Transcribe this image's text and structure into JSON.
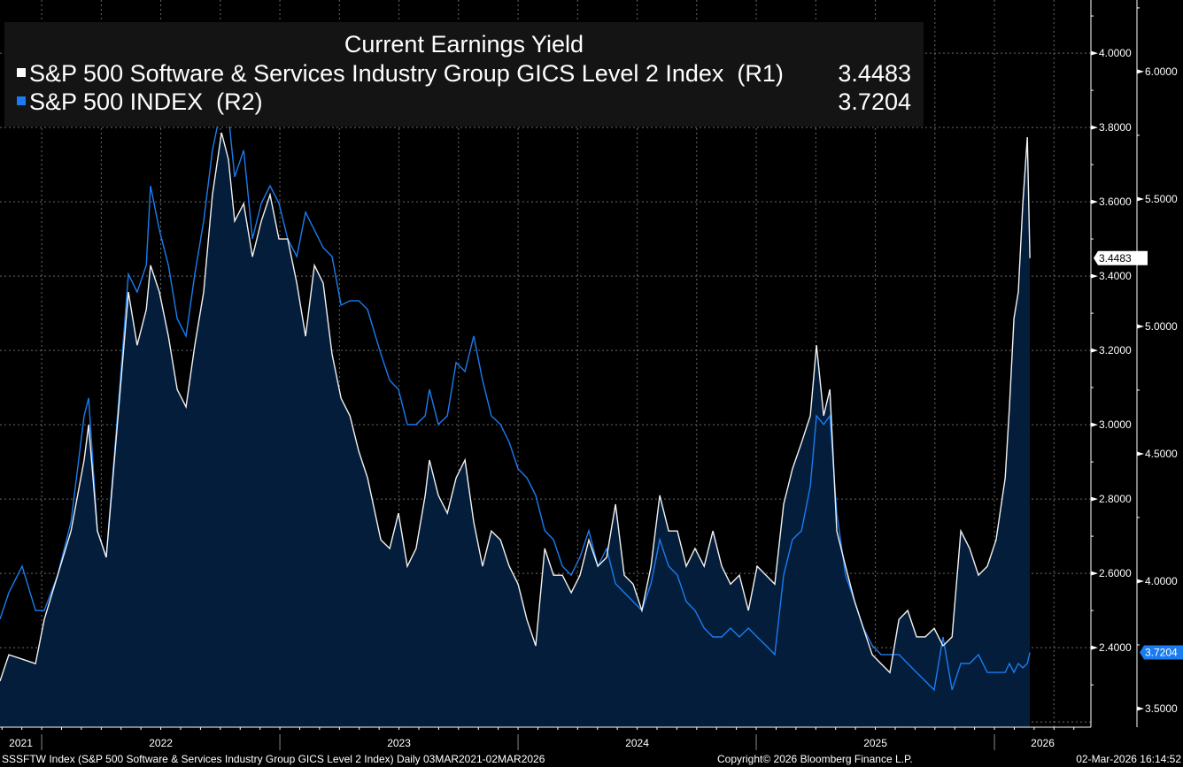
{
  "chart_data": {
    "type": "line",
    "title": "Current Earnings Yield",
    "legend_placement": "top-left",
    "grid": true,
    "x_unit": "decimal year",
    "xlim": [
      2021.825,
      2026.405
    ],
    "x_tick_labels": [
      "2021",
      "2022",
      "2023",
      "2024",
      "2025",
      "2026"
    ],
    "x": [
      2021.825,
      2021.862,
      2021.918,
      2021.974,
      2022.011,
      2022.067,
      2022.123,
      2022.178,
      2022.197,
      2022.234,
      2022.271,
      2022.327,
      2022.364,
      2022.401,
      2022.439,
      2022.457,
      2022.494,
      2022.532,
      2022.569,
      2022.606,
      2022.643,
      2022.68,
      2022.717,
      2022.755,
      2022.784,
      2022.81,
      2022.848,
      2022.885,
      2022.922,
      2022.959,
      2022.996,
      2023.033,
      2023.071,
      2023.108,
      2023.145,
      2023.182,
      2023.219,
      2023.257,
      2023.294,
      2023.331,
      2023.368,
      2023.424,
      2023.461,
      2023.498,
      2023.535,
      2023.572,
      2023.61,
      2023.628,
      2023.665,
      2023.703,
      2023.74,
      2023.777,
      2023.814,
      2023.851,
      2023.888,
      2023.926,
      2023.963,
      2024.0,
      2024.037,
      2024.074,
      2024.112,
      2024.149,
      2024.186,
      2024.223,
      2024.26,
      2024.297,
      2024.335,
      2024.372,
      2024.409,
      2024.446,
      2024.483,
      2024.52,
      2024.558,
      2024.595,
      2024.632,
      2024.669,
      2024.706,
      2024.743,
      2024.781,
      2024.818,
      2024.855,
      2024.892,
      2024.929,
      2024.967,
      2025.004,
      2025.041,
      2025.078,
      2025.115,
      2025.152,
      2025.19,
      2025.227,
      2025.253,
      2025.283,
      2025.309,
      2025.338,
      2025.375,
      2025.413,
      2025.45,
      2025.487,
      2025.524,
      2025.561,
      2025.599,
      2025.636,
      2025.673,
      2025.71,
      2025.747,
      2025.784,
      2025.822,
      2025.859,
      2025.896,
      2025.933,
      2025.97,
      2026.007,
      2026.045,
      2026.063,
      2026.082,
      2026.1,
      2026.119,
      2026.138,
      2026.149
    ],
    "series": [
      {
        "name": "S&P 500 Software & Services Industry Group GICS Level 2 Index",
        "axis": "(R1)",
        "last_value": "3.4483",
        "color": "#ffffff",
        "values": [
          2.31,
          2.381,
          2.369,
          2.357,
          2.476,
          2.595,
          2.714,
          2.905,
          3.0,
          2.714,
          2.643,
          3.071,
          3.357,
          3.214,
          3.31,
          3.429,
          3.357,
          3.238,
          3.095,
          3.048,
          3.214,
          3.357,
          3.619,
          3.786,
          3.714,
          3.548,
          3.595,
          3.452,
          3.548,
          3.619,
          3.5,
          3.5,
          3.381,
          3.238,
          3.429,
          3.381,
          3.19,
          3.071,
          3.024,
          2.929,
          2.857,
          2.69,
          2.667,
          2.762,
          2.619,
          2.667,
          2.81,
          2.905,
          2.81,
          2.762,
          2.857,
          2.905,
          2.738,
          2.619,
          2.714,
          2.69,
          2.619,
          2.571,
          2.476,
          2.405,
          2.667,
          2.595,
          2.595,
          2.548,
          2.595,
          2.69,
          2.619,
          2.643,
          2.786,
          2.595,
          2.571,
          2.5,
          2.619,
          2.81,
          2.714,
          2.714,
          2.619,
          2.667,
          2.619,
          2.714,
          2.619,
          2.571,
          2.595,
          2.5,
          2.619,
          2.595,
          2.571,
          2.786,
          2.881,
          2.952,
          3.024,
          3.214,
          3.024,
          3.095,
          2.714,
          2.619,
          2.524,
          2.452,
          2.381,
          2.357,
          2.333,
          2.476,
          2.5,
          2.429,
          2.429,
          2.452,
          2.405,
          2.429,
          2.714,
          2.667,
          2.595,
          2.619,
          2.69,
          2.857,
          3.048,
          3.286,
          3.357,
          3.595,
          3.774,
          3.4483
        ]
      },
      {
        "name": "S&P 500 INDEX",
        "axis": "(R2)",
        "last_value": "3.7204",
        "color": "#1a7cf0",
        "values": [
          3.851,
          3.955,
          4.059,
          3.885,
          3.885,
          4.024,
          4.233,
          4.649,
          4.719,
          4.198,
          4.094,
          4.753,
          5.205,
          5.135,
          5.24,
          5.552,
          5.378,
          5.24,
          5.031,
          4.962,
          5.205,
          5.413,
          5.691,
          5.865,
          5.83,
          5.587,
          5.691,
          5.344,
          5.483,
          5.552,
          5.483,
          5.344,
          5.274,
          5.448,
          5.378,
          5.309,
          5.274,
          5.083,
          5.101,
          5.101,
          5.066,
          4.892,
          4.788,
          4.753,
          4.615,
          4.615,
          4.649,
          4.753,
          4.615,
          4.649,
          4.858,
          4.823,
          4.962,
          4.788,
          4.649,
          4.615,
          4.545,
          4.441,
          4.406,
          4.337,
          4.198,
          4.163,
          4.059,
          4.024,
          4.094,
          4.198,
          4.059,
          4.128,
          3.99,
          3.955,
          3.92,
          3.885,
          3.99,
          4.163,
          4.059,
          4.024,
          3.92,
          3.885,
          3.816,
          3.781,
          3.781,
          3.816,
          3.781,
          3.816,
          3.781,
          3.747,
          3.712,
          4.024,
          4.163,
          4.198,
          4.372,
          4.649,
          4.615,
          4.649,
          4.267,
          4.024,
          3.92,
          3.816,
          3.747,
          3.712,
          3.712,
          3.712,
          3.677,
          3.642,
          3.608,
          3.573,
          3.781,
          3.573,
          3.677,
          3.677,
          3.712,
          3.642,
          3.642,
          3.642,
          3.677,
          3.642,
          3.677,
          3.66,
          3.677,
          3.7204
        ]
      }
    ],
    "y_axes": {
      "R1": {
        "ylim": [
          2.186,
          4.143
        ],
        "ticks": [
          2.4,
          2.6,
          2.8,
          3.0,
          3.2,
          3.4,
          3.6,
          3.8,
          4.0
        ],
        "tick_labels": [
          "2.4000",
          "2.6000",
          "2.8000",
          "3.0000",
          "3.2000",
          "3.4000",
          "3.6000",
          "3.8000",
          "4.0000"
        ]
      },
      "R2": {
        "ylim": [
          3.427,
          6.281
        ],
        "ticks": [
          3.5,
          4.0,
          4.5,
          5.0,
          5.5,
          6.0
        ],
        "tick_labels": [
          "3.5000",
          "4.0000",
          "4.5000",
          "5.0000",
          "5.5000",
          "6.0000"
        ]
      }
    }
  },
  "footer": {
    "left": "SSSFTW Index (S&P 500 Software & Services Industry Group GICS Level 2 Index) Daily 03MAR2021-02MAR2026",
    "center": "Copyright© 2026 Bloomberg Finance L.P.",
    "right": "02-Mar-2026 16:14:52"
  }
}
